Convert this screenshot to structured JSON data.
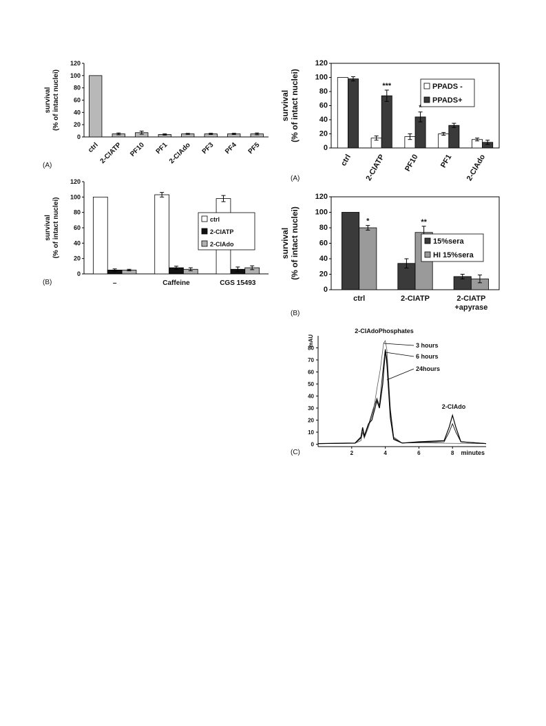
{
  "chart_data": [
    {
      "panel": "(A)",
      "type": "bar",
      "ylabel": [
        "survival",
        "(% of intact nuclei)"
      ],
      "ylim": [
        0,
        120
      ],
      "yticks": [
        "0",
        "20",
        "40",
        "60",
        "80",
        "100",
        "120"
      ],
      "categories": [
        "ctrl",
        "2-CIATP",
        "PF10",
        "PF1",
        "2-CIAdo",
        "PF3",
        "PF4",
        "PF5"
      ],
      "series": [
        {
          "color": "#b8b8b8",
          "values": [
            100,
            5,
            7,
            4,
            5,
            5,
            5,
            5
          ],
          "errors": [
            0,
            1.5,
            2.5,
            1,
            0.8,
            1,
            1,
            1.5
          ]
        }
      ]
    },
    {
      "panel": "(B)",
      "type": "bar",
      "ylabel": [
        "survival",
        "(% of intact nuclei)"
      ],
      "ylim": [
        0,
        120
      ],
      "yticks": [
        "0",
        "20",
        "40",
        "60",
        "80",
        "100",
        "120"
      ],
      "categories": [
        "–",
        "Caffeine",
        "CGS 15493"
      ],
      "legend_position": "right",
      "series": [
        {
          "name": "ctrl",
          "color": "#ffffff",
          "values": [
            100,
            103,
            98
          ],
          "errors": [
            0,
            3,
            4
          ]
        },
        {
          "name": "2-CIATP",
          "color": "#111111",
          "values": [
            5,
            8,
            6
          ],
          "errors": [
            1.5,
            2,
            3
          ]
        },
        {
          "name": "2-CIAdo",
          "color": "#b0b0b0",
          "values": [
            5,
            6,
            8
          ],
          "errors": [
            1,
            2,
            2.5
          ]
        }
      ]
    },
    {
      "panel": "(A)",
      "type": "bar",
      "ylabel": [
        "survival",
        "(% of intact nuclei)"
      ],
      "ylim": [
        0,
        120
      ],
      "yticks": [
        "0",
        "20",
        "40",
        "60",
        "80",
        "100",
        "120"
      ],
      "categories": [
        "ctrl",
        "2-ClATP",
        "PF10",
        "PF1",
        "2-ClAdo"
      ],
      "legend_position": "top-right",
      "series": [
        {
          "name": "PPADS -",
          "color": "#ffffff",
          "values": [
            100,
            14,
            16,
            20,
            12
          ],
          "errors": [
            0,
            3,
            4,
            2,
            2
          ]
        },
        {
          "name": "PPADS+",
          "color": "#3a3a3a",
          "values": [
            98,
            74,
            44,
            32,
            8
          ],
          "errors": [
            3,
            8,
            7,
            3,
            3
          ]
        }
      ],
      "annotations": [
        {
          "category": "2-ClATP",
          "text": "***"
        },
        {
          "category": "PF10",
          "text": "*"
        }
      ]
    },
    {
      "panel": "(B)",
      "type": "bar",
      "ylabel": [
        "survival",
        "(% of intact nuclei)"
      ],
      "ylim": [
        0,
        120
      ],
      "yticks": [
        "0",
        "20",
        "40",
        "60",
        "80",
        "100",
        "120"
      ],
      "categories": [
        "ctrl",
        "2-CIATP",
        "2-CIATP +apyrase"
      ],
      "legend_position": "right",
      "series": [
        {
          "name": "15%sera",
          "color": "#3a3a3a",
          "values": [
            100,
            34,
            17
          ],
          "errors": [
            0,
            6,
            3
          ]
        },
        {
          "name": "HI 15%sera",
          "color": "#9a9a9a",
          "values": [
            80,
            74,
            14
          ],
          "errors": [
            3,
            8,
            5
          ]
        }
      ],
      "annotations": [
        {
          "category": "ctrl",
          "text": "*"
        },
        {
          "category": "2-CIATP",
          "text": "**"
        }
      ]
    },
    {
      "panel": "(C)",
      "type": "line",
      "ylabel": "mAU",
      "xlabel": "minutes",
      "xlim": [
        0,
        10
      ],
      "ylim": [
        -2,
        90
      ],
      "xticks": [
        "2",
        "4",
        "6",
        "8"
      ],
      "yticks": [
        "0",
        "10",
        "20",
        "30",
        "40",
        "50",
        "60",
        "70",
        "80"
      ],
      "series": [
        {
          "name": "3 hours",
          "label_text": "3 hours",
          "points": [
            [
              0,
              0.5
            ],
            [
              2.2,
              0.8
            ],
            [
              2.55,
              3
            ],
            [
              2.65,
              10
            ],
            [
              2.75,
              5
            ],
            [
              3.0,
              14
            ],
            [
              3.3,
              28
            ],
            [
              3.5,
              46
            ],
            [
              3.7,
              62
            ],
            [
              3.9,
              84
            ],
            [
              4.0,
              86
            ],
            [
              4.1,
              78
            ],
            [
              4.3,
              30
            ],
            [
              4.5,
              6
            ],
            [
              5.0,
              1
            ],
            [
              6.0,
              1.2
            ],
            [
              7.5,
              0.8
            ],
            [
              10,
              0.5
            ]
          ]
        },
        {
          "name": "6 hours",
          "label_text": "6 hours",
          "points": [
            [
              0,
              0.5
            ],
            [
              2.2,
              0.8
            ],
            [
              2.55,
              5
            ],
            [
              2.65,
              13
            ],
            [
              2.75,
              6
            ],
            [
              3.0,
              16
            ],
            [
              3.3,
              30
            ],
            [
              3.5,
              38
            ],
            [
              3.65,
              32
            ],
            [
              3.85,
              60
            ],
            [
              4.0,
              79
            ],
            [
              4.1,
              70
            ],
            [
              4.3,
              28
            ],
            [
              4.5,
              5
            ],
            [
              5.0,
              1
            ],
            [
              6.0,
              1.5
            ],
            [
              7.5,
              2
            ],
            [
              7.8,
              10
            ],
            [
              8.0,
              17
            ],
            [
              8.2,
              10
            ],
            [
              8.5,
              2
            ],
            [
              10,
              0.5
            ]
          ]
        },
        {
          "name": "24hours",
          "label_text": "24hours",
          "points": [
            [
              0,
              0.5
            ],
            [
              2.2,
              1
            ],
            [
              2.55,
              6
            ],
            [
              2.65,
              14
            ],
            [
              2.75,
              7
            ],
            [
              3.0,
              17
            ],
            [
              3.2,
              20
            ],
            [
              3.5,
              36
            ],
            [
              3.65,
              30
            ],
            [
              3.85,
              50
            ],
            [
              4.0,
              78
            ],
            [
              4.1,
              66
            ],
            [
              4.3,
              22
            ],
            [
              4.5,
              4
            ],
            [
              5.0,
              1
            ],
            [
              6.0,
              2
            ],
            [
              7.5,
              3
            ],
            [
              7.8,
              14
            ],
            [
              8.0,
              24
            ],
            [
              8.2,
              14
            ],
            [
              8.5,
              2
            ],
            [
              10,
              0.5
            ]
          ]
        }
      ],
      "annotations": [
        {
          "text": "2-CIAdoPhosphates"
        },
        {
          "text": "2-CIAdo"
        }
      ]
    }
  ]
}
